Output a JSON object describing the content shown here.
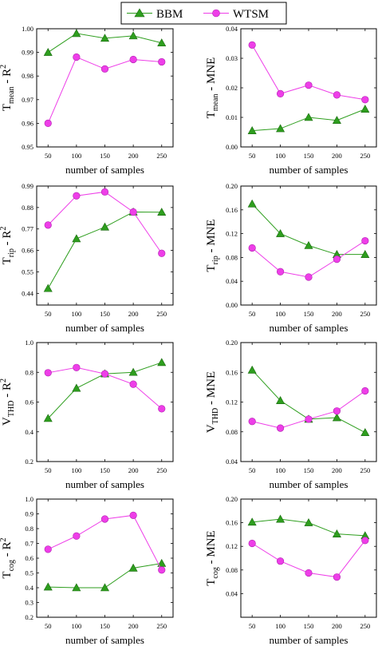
{
  "legend": {
    "items": [
      {
        "label": "BBM",
        "color": "#2e9e1e",
        "marker": "triangle"
      },
      {
        "label": "WTSM",
        "color": "#ee3ee8",
        "marker": "circle"
      }
    ]
  },
  "chart_data": [
    {
      "type": "line",
      "ylabel_main": "T",
      "ylabel_sub": "mean",
      "ylabel_suffix": " - R",
      "ylabel_sup": "2",
      "xlabel": "number of samples",
      "x": [
        50,
        100,
        150,
        200,
        250
      ],
      "xticks": [
        "50",
        "100",
        "150",
        "200",
        "250"
      ],
      "xlim": [
        30,
        270
      ],
      "ylim": [
        0.95,
        1.0
      ],
      "yticks": [
        0.95,
        0.96,
        0.97,
        0.98,
        0.99,
        1.0
      ],
      "yticklabels": [
        "0.95",
        "0.96",
        "0.97",
        "0.98",
        "0.99",
        "1.00"
      ],
      "series": [
        {
          "name": "BBM",
          "values": [
            0.99,
            0.998,
            0.996,
            0.997,
            0.994
          ]
        },
        {
          "name": "WTSM",
          "values": [
            0.96,
            0.988,
            0.983,
            0.987,
            0.986
          ]
        }
      ]
    },
    {
      "type": "line",
      "ylabel_main": "T",
      "ylabel_sub": "mean",
      "ylabel_suffix": " - MNE",
      "ylabel_sup": "",
      "xlabel": "number of samples",
      "x": [
        50,
        100,
        150,
        200,
        250
      ],
      "xticks": [
        "50",
        "100",
        "150",
        "200",
        "250"
      ],
      "xlim": [
        30,
        270
      ],
      "ylim": [
        0.0,
        0.04
      ],
      "yticks": [
        0.0,
        0.01,
        0.02,
        0.03,
        0.04
      ],
      "yticklabels": [
        "0.00",
        "0.01",
        "0.02",
        "0.03",
        "0.04"
      ],
      "series": [
        {
          "name": "BBM",
          "values": [
            0.0055,
            0.0062,
            0.01,
            0.009,
            0.0128
          ]
        },
        {
          "name": "WTSM",
          "values": [
            0.0345,
            0.018,
            0.0209,
            0.0176,
            0.016
          ]
        }
      ]
    },
    {
      "type": "line",
      "ylabel_main": "T",
      "ylabel_sub": "rip",
      "ylabel_suffix": " - R",
      "ylabel_sup": "2",
      "xlabel": "number of samples",
      "x": [
        50,
        100,
        150,
        200,
        250
      ],
      "xticks": [
        "50",
        "100",
        "150",
        "200",
        "250"
      ],
      "xlim": [
        30,
        270
      ],
      "ylim": [
        0.38,
        0.99
      ],
      "yticks": [
        0.44,
        0.55,
        0.66,
        0.77,
        0.88,
        0.99
      ],
      "yticklabels": [
        "0.44",
        "0.55",
        "0.66",
        "0.77",
        "0.88",
        "0.99"
      ],
      "series": [
        {
          "name": "BBM",
          "values": [
            0.465,
            0.72,
            0.78,
            0.857,
            0.856
          ]
        },
        {
          "name": "WTSM",
          "values": [
            0.79,
            0.94,
            0.96,
            0.857,
            0.645
          ]
        }
      ]
    },
    {
      "type": "line",
      "ylabel_main": "T",
      "ylabel_sub": "rip",
      "ylabel_suffix": " - MNE",
      "ylabel_sup": "",
      "xlabel": "number of samples",
      "x": [
        50,
        100,
        150,
        200,
        250
      ],
      "xticks": [
        "50",
        "100",
        "150",
        "200",
        "250"
      ],
      "xlim": [
        30,
        270
      ],
      "ylim": [
        0.0,
        0.2
      ],
      "yticks": [
        0.0,
        0.04,
        0.08,
        0.12,
        0.16,
        0.2
      ],
      "yticklabels": [
        "0.00",
        "0.04",
        "0.08",
        "0.12",
        "0.16",
        "0.20"
      ],
      "series": [
        {
          "name": "BBM",
          "values": [
            0.17,
            0.12,
            0.1,
            0.085,
            0.085
          ]
        },
        {
          "name": "WTSM",
          "values": [
            0.096,
            0.056,
            0.047,
            0.077,
            0.108
          ]
        }
      ]
    },
    {
      "type": "line",
      "ylabel_main": "V",
      "ylabel_sub": "THD",
      "ylabel_suffix": " - R",
      "ylabel_sup": "2",
      "xlabel": "number of samples",
      "x": [
        50,
        100,
        150,
        200,
        250
      ],
      "xticks": [
        "50",
        "100",
        "150",
        "200",
        "250"
      ],
      "xlim": [
        30,
        270
      ],
      "ylim": [
        0.2,
        1.0
      ],
      "yticks": [
        0.2,
        0.4,
        0.6,
        0.8,
        1.0
      ],
      "yticklabels": [
        "0.2",
        "0.4",
        "0.6",
        "0.8",
        "1.0"
      ],
      "series": [
        {
          "name": "BBM",
          "values": [
            0.49,
            0.693,
            0.79,
            0.8,
            0.866
          ]
        },
        {
          "name": "WTSM",
          "values": [
            0.797,
            0.832,
            0.79,
            0.72,
            0.555
          ]
        }
      ]
    },
    {
      "type": "line",
      "ylabel_main": "V",
      "ylabel_sub": "THD",
      "ylabel_suffix": " - MNE",
      "ylabel_sup": "",
      "xlabel": "number of samples",
      "x": [
        50,
        100,
        150,
        200,
        250
      ],
      "xticks": [
        "50",
        "100",
        "150",
        "200",
        "250"
      ],
      "xlim": [
        30,
        270
      ],
      "ylim": [
        0.04,
        0.2
      ],
      "yticks": [
        0.04,
        0.08,
        0.12,
        0.16,
        0.2
      ],
      "yticklabels": [
        "0.04",
        "0.08",
        "0.12",
        "0.16",
        "0.20"
      ],
      "series": [
        {
          "name": "BBM",
          "values": [
            0.163,
            0.122,
            0.097,
            0.099,
            0.079
          ]
        },
        {
          "name": "WTSM",
          "values": [
            0.094,
            0.085,
            0.097,
            0.108,
            0.135
          ]
        }
      ]
    },
    {
      "type": "line",
      "ylabel_main": "T",
      "ylabel_sub": "cog",
      "ylabel_suffix": " - R",
      "ylabel_sup": "2",
      "xlabel": "number of samples",
      "x": [
        50,
        100,
        150,
        200,
        250
      ],
      "xticks": [
        "50",
        "100",
        "150",
        "200",
        "250"
      ],
      "xlim": [
        30,
        270
      ],
      "ylim": [
        0.2,
        1.0
      ],
      "yticks": [
        0.2,
        0.3,
        0.4,
        0.5,
        0.6,
        0.7,
        0.8,
        0.9,
        1.0
      ],
      "yticklabels": [
        "0.2",
        "0.3",
        "0.4",
        "0.5",
        "0.6",
        "0.7",
        "0.8",
        "0.9",
        "1.0"
      ],
      "series": [
        {
          "name": "BBM",
          "values": [
            0.405,
            0.4,
            0.4,
            0.533,
            0.565
          ]
        },
        {
          "name": "WTSM",
          "values": [
            0.66,
            0.75,
            0.865,
            0.89,
            0.52
          ]
        }
      ]
    },
    {
      "type": "line",
      "ylabel_main": "T",
      "ylabel_sub": "cog",
      "ylabel_suffix": " - MNE",
      "ylabel_sup": "",
      "xlabel": "number of samples",
      "x": [
        50,
        100,
        150,
        200,
        250
      ],
      "xticks": [
        "50",
        "100",
        "150",
        "200",
        "250"
      ],
      "xlim": [
        30,
        270
      ],
      "ylim": [
        0.0,
        0.2
      ],
      "yticks": [
        0.04,
        0.08,
        0.12,
        0.16,
        0.2
      ],
      "yticklabels": [
        "0.04",
        "0.08",
        "0.12",
        "0.16",
        "0.20"
      ],
      "series": [
        {
          "name": "BBM",
          "values": [
            0.161,
            0.166,
            0.16,
            0.141,
            0.138
          ]
        },
        {
          "name": "WTSM",
          "values": [
            0.125,
            0.095,
            0.075,
            0.068,
            0.13
          ]
        }
      ]
    }
  ]
}
